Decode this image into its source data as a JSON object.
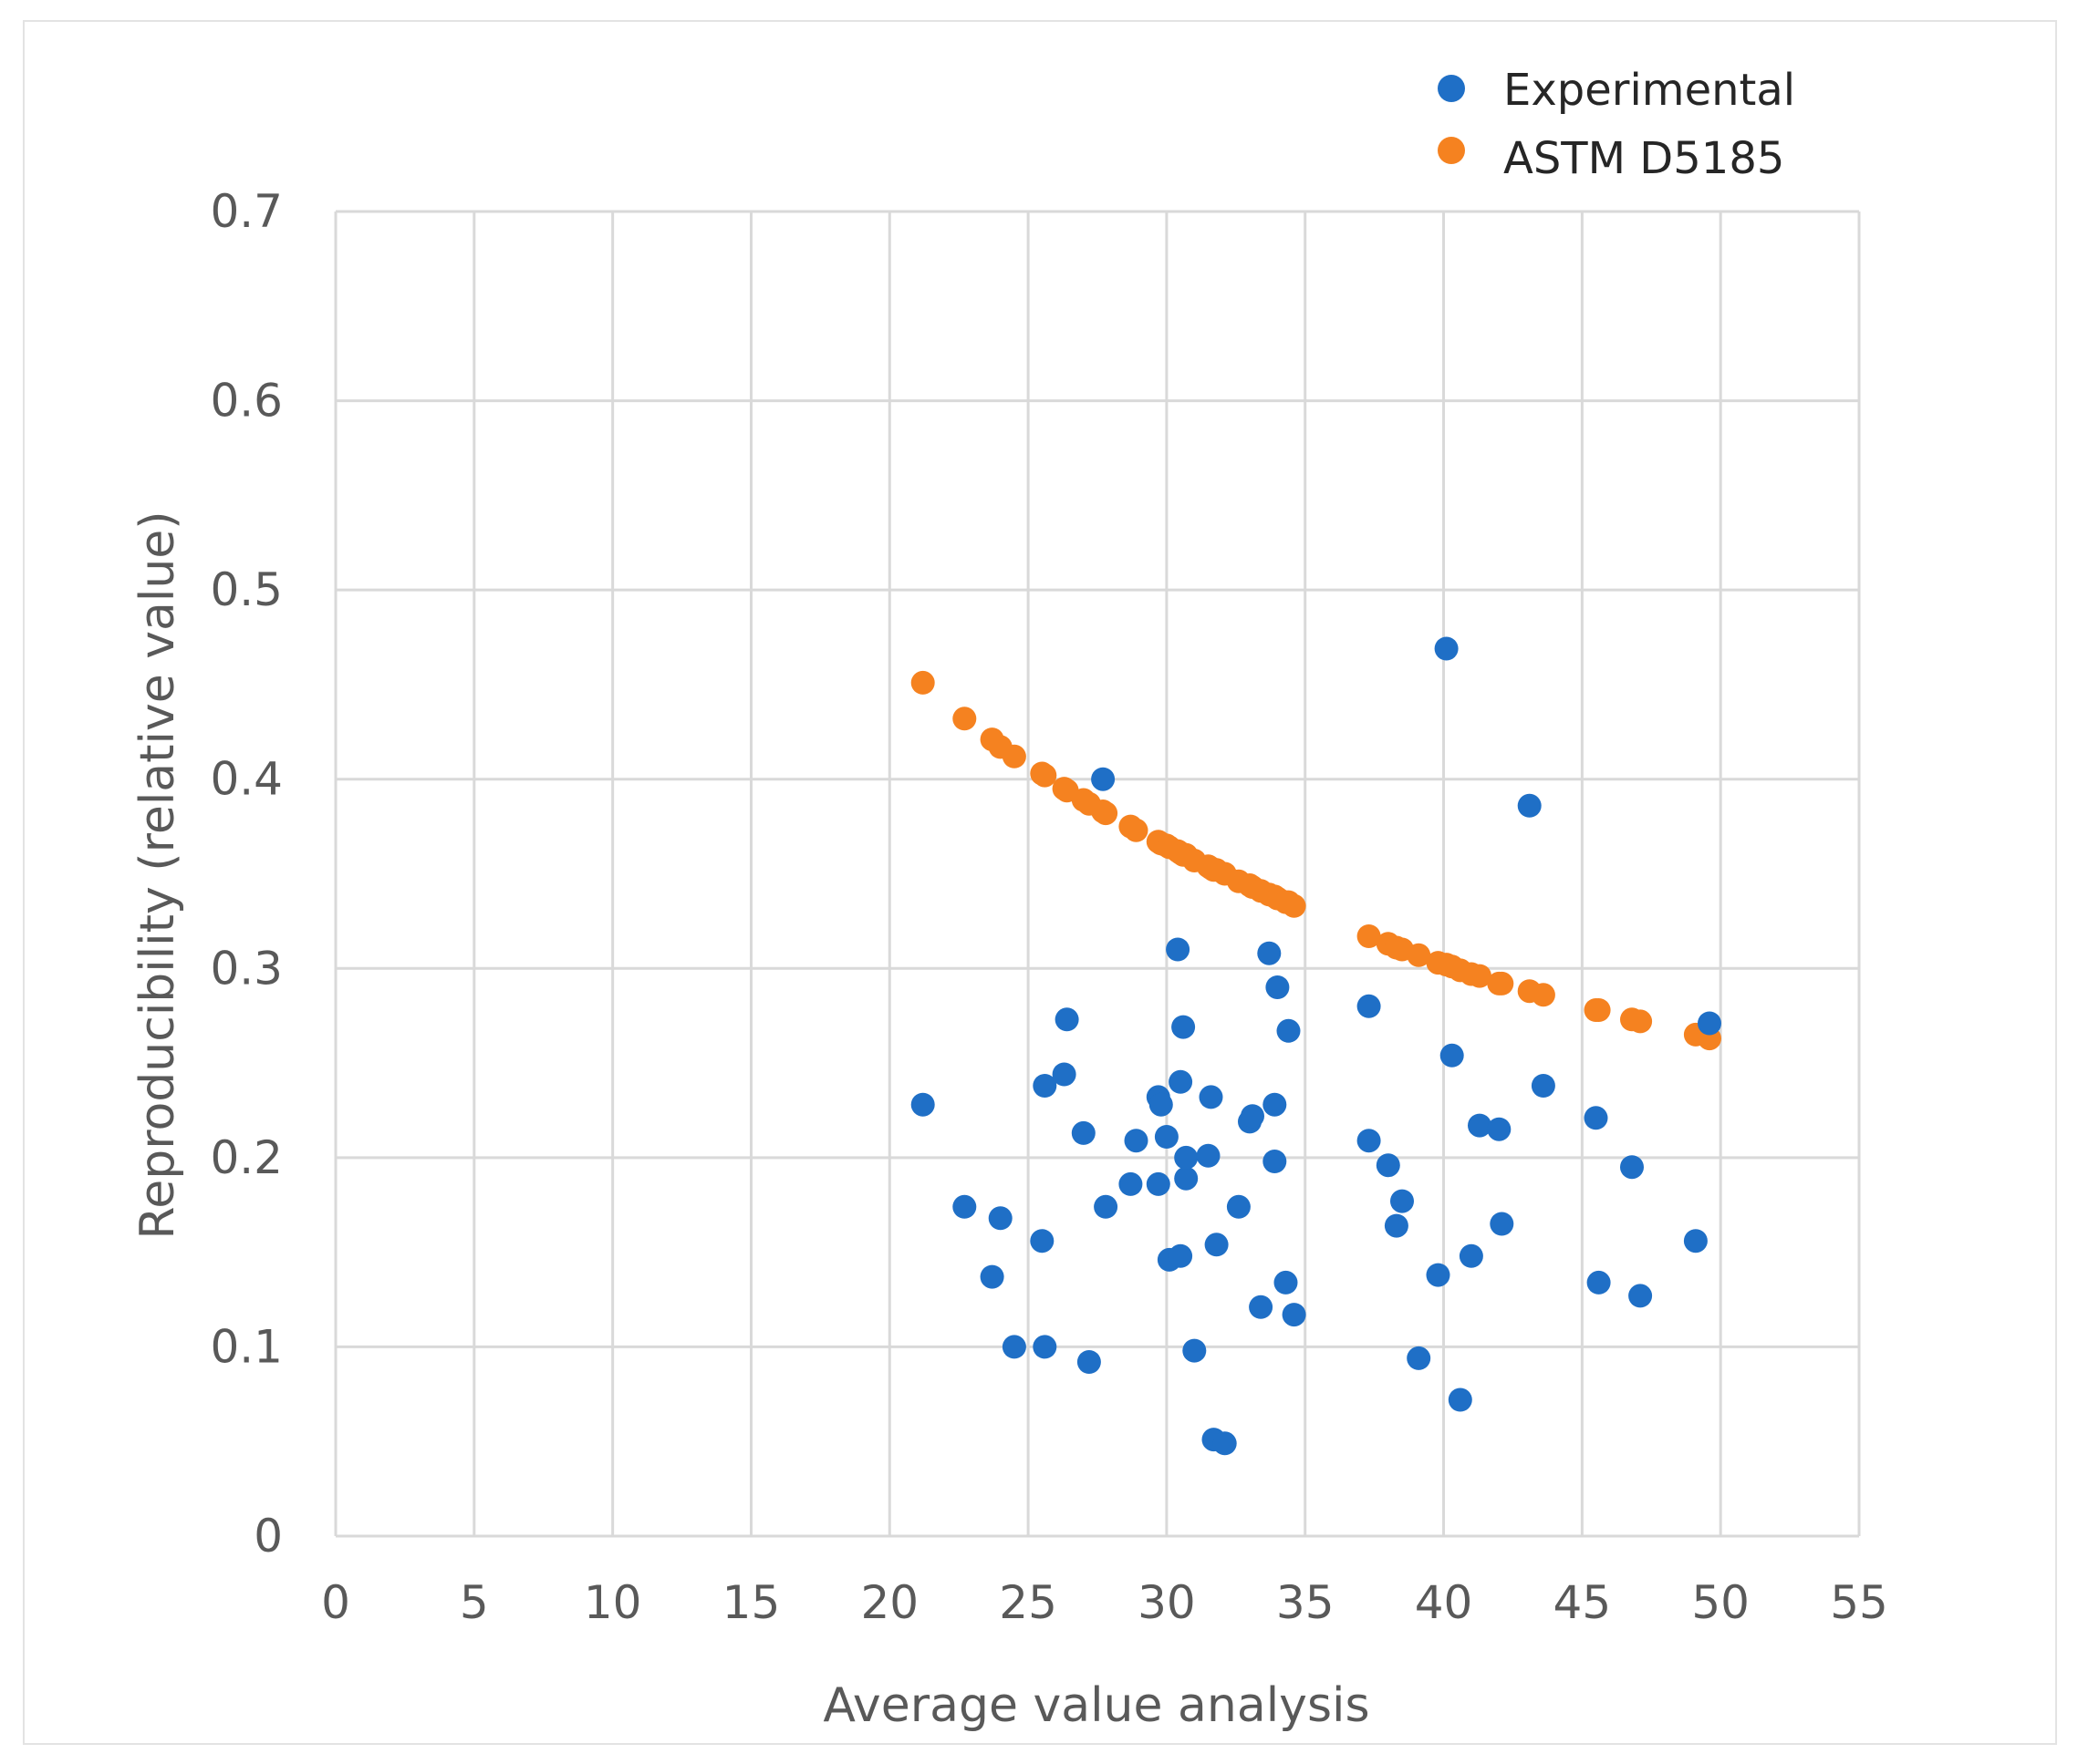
{
  "chart_data": {
    "type": "scatter",
    "title": "",
    "xlabel": "Average value analysis",
    "ylabel": "Reproducibility (relative value)",
    "xlim": [
      0,
      55
    ],
    "ylim": [
      0,
      0.7
    ],
    "xticks": [
      0,
      5,
      10,
      15,
      20,
      25,
      30,
      35,
      40,
      45,
      50,
      55
    ],
    "yticks": [
      0,
      0.1,
      0.2,
      0.3,
      0.4,
      0.5,
      0.6,
      0.7
    ],
    "xtick_labels": [
      "0",
      "5",
      "10",
      "15",
      "20",
      "25",
      "30",
      "35",
      "40",
      "45",
      "50",
      "55"
    ],
    "ytick_labels": [
      "0",
      "0.1",
      "0.2",
      "0.3",
      "0.4",
      "0.5",
      "0.6",
      "0.7"
    ],
    "grid": true,
    "legend_position": "top-right",
    "series": [
      {
        "name": "Experimental",
        "color": "#1f6fc6",
        "points": [
          [
            21.2,
            0.228
          ],
          [
            22.7,
            0.174
          ],
          [
            23.7,
            0.137
          ],
          [
            24.0,
            0.168
          ],
          [
            24.5,
            0.1
          ],
          [
            25.5,
            0.156
          ],
          [
            25.6,
            0.238
          ],
          [
            25.6,
            0.1
          ],
          [
            26.3,
            0.244
          ],
          [
            26.4,
            0.273
          ],
          [
            27.0,
            0.213
          ],
          [
            27.2,
            0.092
          ],
          [
            27.7,
            0.4
          ],
          [
            27.8,
            0.174
          ],
          [
            28.7,
            0.186
          ],
          [
            28.9,
            0.209
          ],
          [
            29.7,
            0.186
          ],
          [
            29.7,
            0.232
          ],
          [
            29.8,
            0.228
          ],
          [
            30.0,
            0.211
          ],
          [
            30.1,
            0.146
          ],
          [
            30.4,
            0.31
          ],
          [
            30.5,
            0.148
          ],
          [
            30.5,
            0.24
          ],
          [
            30.6,
            0.269
          ],
          [
            30.7,
            0.189
          ],
          [
            30.7,
            0.2
          ],
          [
            31.0,
            0.098
          ],
          [
            31.5,
            0.201
          ],
          [
            31.6,
            0.232
          ],
          [
            31.7,
            0.051
          ],
          [
            31.8,
            0.154
          ],
          [
            32.1,
            0.049
          ],
          [
            32.6,
            0.174
          ],
          [
            33.0,
            0.219
          ],
          [
            33.1,
            0.222
          ],
          [
            33.4,
            0.121
          ],
          [
            33.7,
            0.308
          ],
          [
            33.9,
            0.198
          ],
          [
            33.9,
            0.228
          ],
          [
            34.0,
            0.29
          ],
          [
            34.3,
            0.134
          ],
          [
            34.4,
            0.267
          ],
          [
            34.6,
            0.117
          ],
          [
            37.3,
            0.28
          ],
          [
            37.3,
            0.209
          ],
          [
            38.0,
            0.196
          ],
          [
            38.3,
            0.164
          ],
          [
            38.5,
            0.177
          ],
          [
            39.1,
            0.094
          ],
          [
            39.8,
            0.138
          ],
          [
            40.1,
            0.469
          ],
          [
            40.3,
            0.254
          ],
          [
            40.6,
            0.072
          ],
          [
            41.0,
            0.148
          ],
          [
            41.3,
            0.217
          ],
          [
            42.0,
            0.215
          ],
          [
            42.1,
            0.165
          ],
          [
            43.1,
            0.386
          ],
          [
            43.6,
            0.238
          ],
          [
            45.5,
            0.221
          ],
          [
            45.6,
            0.134
          ],
          [
            46.8,
            0.195
          ],
          [
            47.1,
            0.127
          ],
          [
            49.1,
            0.156
          ],
          [
            49.6,
            0.271
          ]
        ]
      },
      {
        "name": "ASTM D5185",
        "color": "#f58220",
        "points": [
          [
            21.2,
            0.451
          ],
          [
            22.7,
            0.432
          ],
          [
            23.7,
            0.421
          ],
          [
            24.0,
            0.417
          ],
          [
            24.5,
            0.412
          ],
          [
            25.5,
            0.403
          ],
          [
            25.6,
            0.402
          ],
          [
            26.3,
            0.395
          ],
          [
            26.4,
            0.394
          ],
          [
            27.0,
            0.389
          ],
          [
            27.2,
            0.387
          ],
          [
            27.7,
            0.383
          ],
          [
            27.8,
            0.382
          ],
          [
            28.7,
            0.375
          ],
          [
            28.9,
            0.373
          ],
          [
            29.7,
            0.367
          ],
          [
            29.8,
            0.366
          ],
          [
            30.0,
            0.365
          ],
          [
            30.1,
            0.364
          ],
          [
            30.4,
            0.362
          ],
          [
            30.5,
            0.361
          ],
          [
            30.6,
            0.36
          ],
          [
            30.7,
            0.36
          ],
          [
            31.0,
            0.357
          ],
          [
            31.5,
            0.354
          ],
          [
            31.6,
            0.353
          ],
          [
            31.7,
            0.352
          ],
          [
            31.8,
            0.352
          ],
          [
            32.1,
            0.35
          ],
          [
            32.6,
            0.346
          ],
          [
            33.0,
            0.344
          ],
          [
            33.1,
            0.343
          ],
          [
            33.4,
            0.341
          ],
          [
            33.7,
            0.339
          ],
          [
            33.9,
            0.338
          ],
          [
            34.0,
            0.337
          ],
          [
            34.3,
            0.335
          ],
          [
            34.4,
            0.335
          ],
          [
            34.6,
            0.333
          ],
          [
            37.3,
            0.317
          ],
          [
            38.0,
            0.313
          ],
          [
            38.3,
            0.311
          ],
          [
            38.5,
            0.31
          ],
          [
            39.1,
            0.307
          ],
          [
            39.8,
            0.303
          ],
          [
            40.1,
            0.302
          ],
          [
            40.3,
            0.301
          ],
          [
            40.6,
            0.299
          ],
          [
            41.0,
            0.297
          ],
          [
            41.3,
            0.296
          ],
          [
            42.0,
            0.292
          ],
          [
            42.1,
            0.292
          ],
          [
            43.1,
            0.288
          ],
          [
            43.6,
            0.286
          ],
          [
            45.5,
            0.278
          ],
          [
            45.6,
            0.278
          ],
          [
            46.8,
            0.273
          ],
          [
            47.1,
            0.272
          ],
          [
            49.1,
            0.265
          ],
          [
            49.6,
            0.263
          ]
        ]
      }
    ]
  }
}
